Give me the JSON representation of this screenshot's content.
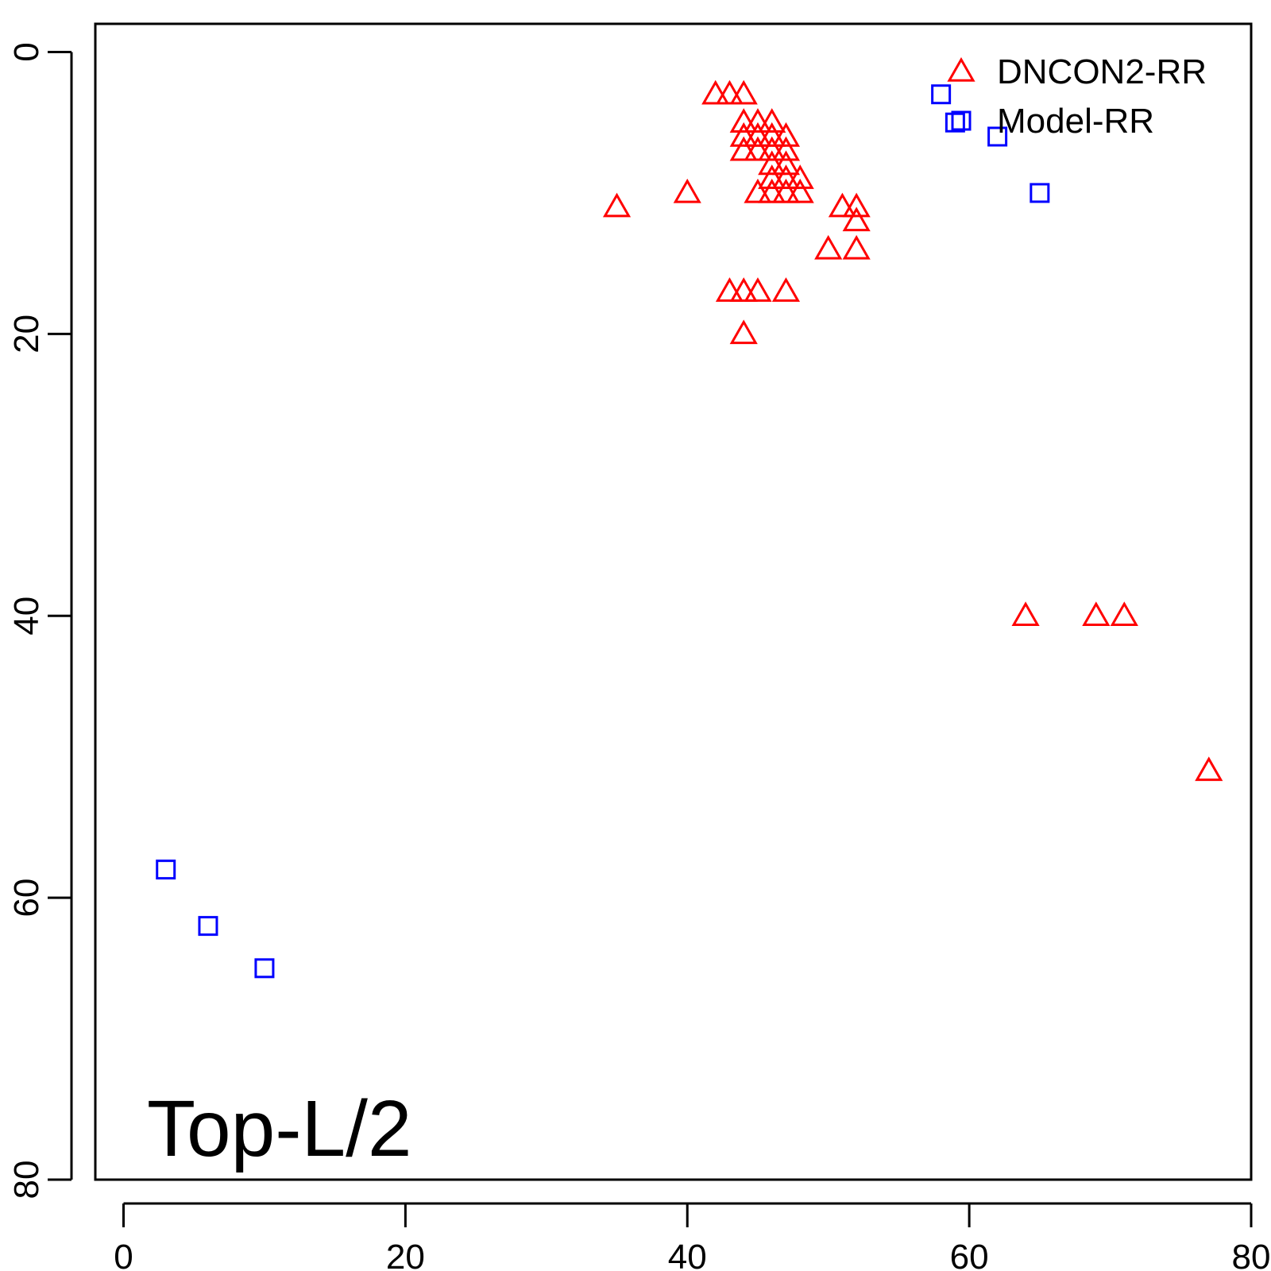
{
  "chart_data": {
    "type": "scatter",
    "title": "",
    "xlabel": "",
    "ylabel": "",
    "xlim": [
      -2,
      80
    ],
    "ylim": [
      80,
      -2
    ],
    "y_reversed": true,
    "x_ticks": [
      0,
      20,
      40,
      60,
      80
    ],
    "y_ticks": [
      0,
      20,
      40,
      60,
      80
    ],
    "x_tick_labels": [
      "0",
      "20",
      "40",
      "60",
      "80"
    ],
    "y_tick_labels": [
      "0",
      "20",
      "40",
      "60",
      "80"
    ],
    "grid": false,
    "legend_position": "top-right",
    "annotation": "Top-L/2",
    "series": [
      {
        "name": "DNCON2-RR",
        "marker": "triangle",
        "color": "#ff0000",
        "points": [
          [
            35,
            11
          ],
          [
            40,
            10
          ],
          [
            42,
            3
          ],
          [
            43,
            3
          ],
          [
            44,
            3
          ],
          [
            44,
            5
          ],
          [
            45,
            5
          ],
          [
            46,
            5
          ],
          [
            44,
            6
          ],
          [
            45,
            6
          ],
          [
            46,
            6
          ],
          [
            47,
            6
          ],
          [
            44,
            7
          ],
          [
            45,
            7
          ],
          [
            46,
            7
          ],
          [
            47,
            7
          ],
          [
            46,
            8
          ],
          [
            47,
            8
          ],
          [
            46,
            9
          ],
          [
            47,
            9
          ],
          [
            48,
            9
          ],
          [
            45,
            10
          ],
          [
            46,
            10
          ],
          [
            47,
            10
          ],
          [
            48,
            10
          ],
          [
            51,
            11
          ],
          [
            52,
            11
          ],
          [
            52,
            12
          ],
          [
            50,
            14
          ],
          [
            52,
            14
          ],
          [
            43,
            17
          ],
          [
            44,
            17
          ],
          [
            45,
            17
          ],
          [
            47,
            17
          ],
          [
            44,
            20
          ],
          [
            64,
            40
          ],
          [
            69,
            40
          ],
          [
            71,
            40
          ],
          [
            77,
            51
          ]
        ]
      },
      {
        "name": "Model-RR",
        "marker": "square",
        "color": "#0000ff",
        "points": [
          [
            58,
            3
          ],
          [
            59,
            5
          ],
          [
            62,
            6
          ],
          [
            65,
            10
          ],
          [
            3,
            58
          ],
          [
            6,
            62
          ],
          [
            10,
            65
          ]
        ]
      }
    ]
  }
}
